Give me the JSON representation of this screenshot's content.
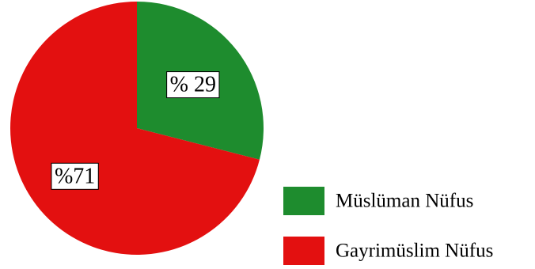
{
  "chart_data": {
    "type": "pie",
    "slices": [
      {
        "name": "Müslüman Nüfus",
        "value": 29,
        "label": "% 29",
        "color": "#1e8c2e"
      },
      {
        "name": "Gayrimüslim Nüfus",
        "value": 71,
        "label": "%71",
        "color": "#e31010"
      }
    ],
    "legend": {
      "placement": "bottom-right",
      "items": [
        "Müslüman Nüfus",
        "Gayrimüslim Nüfus"
      ]
    },
    "start_angle": "top",
    "direction": "clockwise"
  }
}
